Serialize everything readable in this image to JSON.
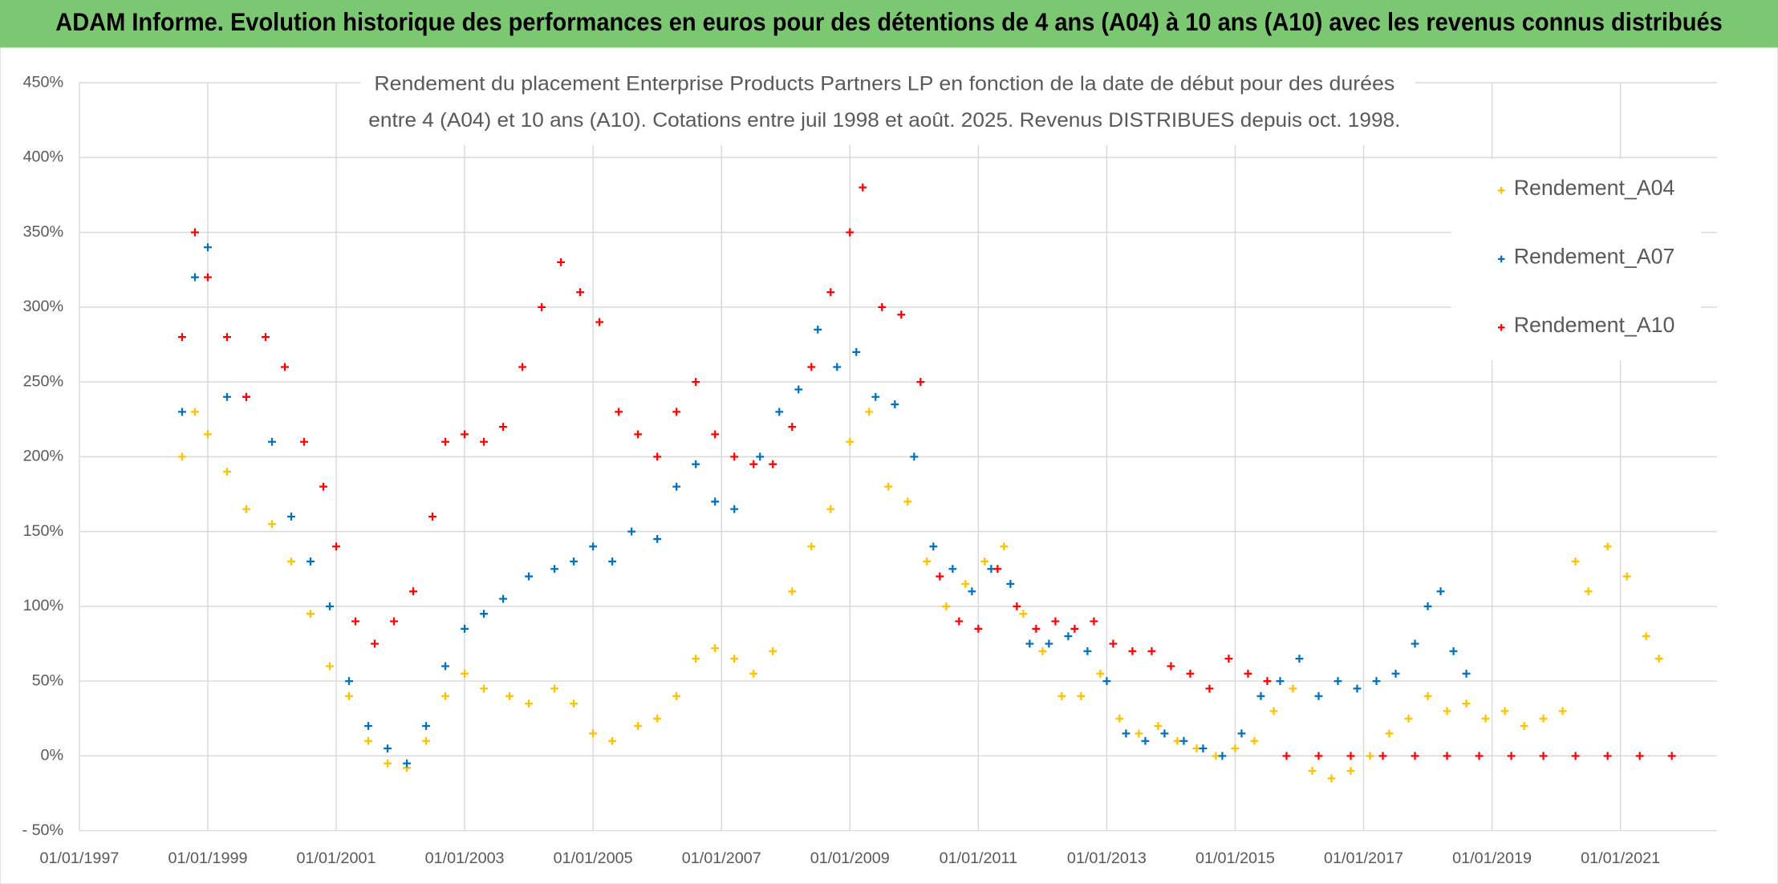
{
  "banner": "ADAM Informe. Evolution historique des performances en euros pour des détentions de 4 ans (A04) à 10 ans (A10) avec les revenus connus distribués",
  "chart_data": {
    "type": "scatter",
    "title": [
      "Rendement du placement Enterprise Products Partners LP en fonction de la date de début pour des durées",
      "entre 4 (A04) et 10 ans (A10). Cotations entre juil 1998 et août. 2025. Revenus DISTRIBUES depuis oct. 1998."
    ],
    "xlim": [
      1997,
      2022.5
    ],
    "xticks": [
      {
        "value": 1997,
        "label": "01/01/1997"
      },
      {
        "value": 1999,
        "label": "01/01/1999"
      },
      {
        "value": 2001,
        "label": "01/01/2001"
      },
      {
        "value": 2003,
        "label": "01/01/2003"
      },
      {
        "value": 2005,
        "label": "01/01/2005"
      },
      {
        "value": 2007,
        "label": "01/01/2007"
      },
      {
        "value": 2009,
        "label": "01/01/2009"
      },
      {
        "value": 2011,
        "label": "01/01/2011"
      },
      {
        "value": 2013,
        "label": "01/01/2013"
      },
      {
        "value": 2015,
        "label": "01/01/2015"
      },
      {
        "value": 2017,
        "label": "01/01/2017"
      },
      {
        "value": 2019,
        "label": "01/01/2019"
      },
      {
        "value": 2021,
        "label": "01/01/2021"
      }
    ],
    "ylim": [
      -50,
      450
    ],
    "yticks": [
      {
        "value": -50,
        "label": "- 50%"
      },
      {
        "value": 0,
        "label": "0%"
      },
      {
        "value": 50,
        "label": "50%"
      },
      {
        "value": 100,
        "label": "100%"
      },
      {
        "value": 150,
        "label": "150%"
      },
      {
        "value": 200,
        "label": "200%"
      },
      {
        "value": 250,
        "label": "250%"
      },
      {
        "value": 300,
        "label": "300%"
      },
      {
        "value": 350,
        "label": "350%"
      },
      {
        "value": 400,
        "label": "400%"
      },
      {
        "value": 450,
        "label": "450%"
      }
    ],
    "grid": true,
    "legend": "right",
    "series": [
      {
        "name": "Rendement_A04",
        "color": "#ffc000",
        "x": [
          1998.6,
          1998.8,
          1999.0,
          1999.3,
          1999.6,
          2000.0,
          2000.3,
          2000.6,
          2000.9,
          2001.2,
          2001.5,
          2001.8,
          2002.1,
          2002.4,
          2002.7,
          2003.0,
          2003.3,
          2003.7,
          2004.0,
          2004.4,
          2004.7,
          2005.0,
          2005.3,
          2005.7,
          2006.0,
          2006.3,
          2006.6,
          2006.9,
          2007.2,
          2007.5,
          2007.8,
          2008.1,
          2008.4,
          2008.7,
          2009.0,
          2009.3,
          2009.6,
          2009.9,
          2010.2,
          2010.5,
          2010.8,
          2011.1,
          2011.4,
          2011.7,
          2012.0,
          2012.3,
          2012.6,
          2012.9,
          2013.2,
          2013.5,
          2013.8,
          2014.1,
          2014.4,
          2014.7,
          2015.0,
          2015.3,
          2015.6,
          2015.9,
          2016.2,
          2016.5,
          2016.8,
          2017.1,
          2017.4,
          2017.7,
          2018.0,
          2018.3,
          2018.6,
          2018.9,
          2019.2,
          2019.5,
          2019.8,
          2020.1,
          2020.3,
          2020.5,
          2020.8,
          2021.1,
          2021.4,
          2021.6
        ],
        "values": [
          200,
          230,
          215,
          190,
          165,
          155,
          130,
          95,
          60,
          40,
          10,
          -5,
          -8,
          10,
          40,
          55,
          45,
          40,
          35,
          45,
          35,
          15,
          10,
          20,
          25,
          40,
          65,
          72,
          65,
          55,
          70,
          110,
          140,
          165,
          210,
          230,
          180,
          170,
          130,
          100,
          115,
          130,
          140,
          95,
          70,
          40,
          40,
          55,
          25,
          15,
          20,
          10,
          5,
          0,
          5,
          10,
          30,
          45,
          -10,
          -15,
          -10,
          0,
          15,
          25,
          40,
          30,
          35,
          25,
          30,
          20,
          25,
          30,
          130,
          110,
          140,
          120,
          80,
          65
        ]
      },
      {
        "name": "Rendement_A07",
        "color": "#0070c0",
        "x": [
          1998.6,
          1998.8,
          1999.0,
          1999.3,
          1999.6,
          2000.0,
          2000.3,
          2000.6,
          2000.9,
          2001.2,
          2001.5,
          2001.8,
          2002.1,
          2002.4,
          2002.7,
          2003.0,
          2003.3,
          2003.6,
          2004.0,
          2004.4,
          2004.7,
          2005.0,
          2005.3,
          2005.6,
          2006.0,
          2006.3,
          2006.6,
          2006.9,
          2007.2,
          2007.6,
          2007.9,
          2008.2,
          2008.5,
          2008.8,
          2009.1,
          2009.4,
          2009.7,
          2010.0,
          2010.3,
          2010.6,
          2010.9,
          2011.2,
          2011.5,
          2011.8,
          2012.1,
          2012.4,
          2012.7,
          2013.0,
          2013.3,
          2013.6,
          2013.9,
          2014.2,
          2014.5,
          2014.8,
          2015.1,
          2015.4,
          2015.7,
          2016.0,
          2016.3,
          2016.6,
          2016.9,
          2017.2,
          2017.5,
          2017.8,
          2018.0,
          2018.2,
          2018.4,
          2018.6
        ],
        "values": [
          230,
          320,
          340,
          240,
          240,
          210,
          160,
          130,
          100,
          50,
          20,
          5,
          -5,
          20,
          60,
          85,
          95,
          105,
          120,
          125,
          130,
          140,
          130,
          150,
          145,
          180,
          195,
          170,
          165,
          200,
          230,
          245,
          285,
          260,
          270,
          240,
          235,
          200,
          140,
          125,
          110,
          125,
          115,
          75,
          75,
          80,
          70,
          50,
          15,
          10,
          15,
          10,
          5,
          0,
          15,
          40,
          50,
          65,
          40,
          50,
          45,
          50,
          55,
          75,
          100,
          110,
          70,
          55
        ]
      },
      {
        "name": "Rendement_A10",
        "color": "#ff0000",
        "x": [
          1998.6,
          1998.8,
          1999.0,
          1999.3,
          1999.6,
          1999.9,
          2000.2,
          2000.5,
          2000.8,
          2001.0,
          2001.3,
          2001.6,
          2001.9,
          2002.2,
          2002.5,
          2002.7,
          2003.0,
          2003.3,
          2003.6,
          2003.9,
          2004.2,
          2004.5,
          2004.8,
          2005.1,
          2005.4,
          2005.7,
          2006.0,
          2006.3,
          2006.6,
          2006.9,
          2007.2,
          2007.5,
          2007.8,
          2008.1,
          2008.4,
          2008.7,
          2009.0,
          2009.2,
          2009.5,
          2009.8,
          2010.1,
          2010.4,
          2010.7,
          2011.0,
          2011.3,
          2011.6,
          2011.9,
          2012.2,
          2012.5,
          2012.8,
          2013.1,
          2013.4,
          2013.7,
          2014.0,
          2014.3,
          2014.6,
          2014.9,
          2015.2,
          2015.5,
          2015.8,
          2016.3,
          2016.8,
          2017.3,
          2017.8,
          2018.3,
          2018.8,
          2019.3,
          2019.8,
          2020.3,
          2020.8,
          2021.3,
          2021.8
        ],
        "values": [
          280,
          350,
          320,
          280,
          240,
          280,
          260,
          210,
          180,
          140,
          90,
          75,
          90,
          110,
          160,
          210,
          215,
          210,
          220,
          260,
          300,
          330,
          310,
          290,
          230,
          215,
          200,
          230,
          250,
          215,
          200,
          195,
          195,
          220,
          260,
          310,
          350,
          380,
          300,
          295,
          250,
          120,
          90,
          85,
          125,
          100,
          85,
          90,
          85,
          90,
          75,
          70,
          70,
          60,
          55,
          45,
          65,
          55,
          50,
          0,
          0,
          0,
          0,
          0,
          0,
          0,
          0,
          0,
          0,
          0,
          0,
          0
        ]
      }
    ]
  }
}
